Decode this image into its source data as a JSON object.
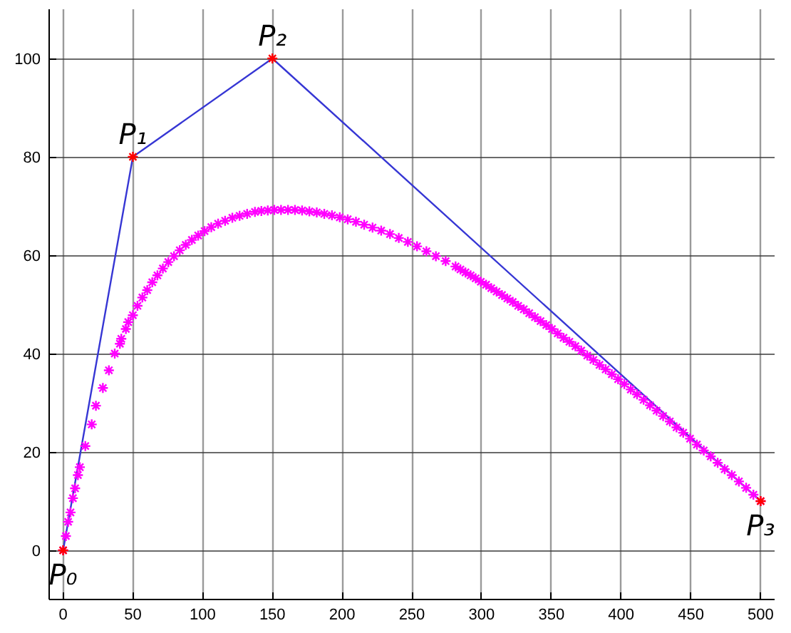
{
  "chart_data": {
    "type": "scatter",
    "marker": "cross",
    "grid": true,
    "xlim": [
      -10,
      510
    ],
    "ylim": [
      -10,
      110
    ],
    "xticks": [
      0,
      50,
      100,
      150,
      200,
      250,
      300,
      350,
      400,
      450,
      500
    ],
    "yticks": [
      0,
      20,
      40,
      60,
      80,
      100
    ],
    "series": [
      {
        "type": "line",
        "marker": "none",
        "color": "#3636d4",
        "x": [
          0,
          50,
          150,
          500
        ],
        "values": [
          0,
          80,
          100,
          10
        ]
      },
      {
        "color": "#ff00ff",
        "x": [
          0,
          2,
          3.6,
          5.3,
          7,
          8.6,
          10.6,
          12,
          15.9,
          20.5,
          23.5,
          28.5,
          32.8,
          37,
          40.7,
          41.7,
          45,
          46.7,
          50,
          53.3,
          56.8,
          60.3,
          63.9,
          67.6,
          71.5,
          75.4,
          79.5,
          83.6,
          87.9,
          92.3,
          96.8,
          101.4,
          106.2,
          111.1,
          116.1,
          121.3,
          126.5,
          131.9,
          137.5,
          142.1,
          146.7,
          151.4,
          156.2,
          161.2,
          166.2,
          171.3,
          176.5,
          181.8,
          187.2,
          192.7,
          198.3,
          204,
          209.9,
          215.8,
          221.8,
          228,
          234.3,
          240.6,
          247.1,
          253.7,
          260.4,
          267.2,
          274.2,
          281.3,
          284.8,
          288.4,
          292.1,
          295.7,
          299.4,
          303.2,
          306.9,
          310.7,
          314.6,
          318.4,
          322.3,
          326.2,
          330.2,
          334.1,
          338.2,
          342.2,
          346.3,
          350.4,
          354.5,
          358.7,
          362.9,
          367.2,
          371.4,
          375.7,
          380.1,
          384.5,
          388.9,
          393.3,
          397.8,
          402.3,
          406.9,
          411.4,
          416.1,
          420.7,
          425.4,
          430.1,
          434.9,
          439.7,
          444.5,
          449.4,
          454.3,
          459.2,
          464.2,
          469.2,
          474.2,
          479.3,
          484.4,
          489.6,
          494.8,
          500
        ],
        "values": [
          0,
          2.9,
          5.8,
          7.7,
          10.6,
          12.6,
          15.3,
          16.9,
          21.2,
          25.6,
          29.4,
          33,
          36.6,
          40,
          42,
          43,
          45,
          46.4,
          47.8,
          49.7,
          51.4,
          52.9,
          54.5,
          55.9,
          57.3,
          58.6,
          59.8,
          61,
          62.1,
          63.1,
          64,
          64.9,
          65.7,
          66.4,
          67,
          67.6,
          68,
          68.4,
          68.8,
          69,
          69.1,
          69.2,
          69.2,
          69.2,
          69.2,
          69.1,
          68.9,
          68.7,
          68.4,
          68.1,
          67.7,
          67.3,
          66.8,
          66.2,
          65.6,
          65,
          64.3,
          63.5,
          62.7,
          61.8,
          60.8,
          59.8,
          58.8,
          57.7,
          57.1,
          56.5,
          55.9,
          55.3,
          54.6,
          54,
          53.3,
          52.6,
          51.9,
          51.2,
          50.5,
          49.7,
          49,
          48.2,
          47.4,
          46.6,
          45.8,
          45,
          44.1,
          43.2,
          42.4,
          41.5,
          40.6,
          39.6,
          38.7,
          37.7,
          36.8,
          35.8,
          34.8,
          33.8,
          32.7,
          31.7,
          30.6,
          29.5,
          28.4,
          27.3,
          26.2,
          25,
          23.9,
          22.7,
          21.5,
          20.3,
          19.1,
          17.8,
          16.5,
          15.3,
          14,
          12.7,
          11.3,
          10
        ]
      },
      {
        "color": "#ff0000",
        "x": [
          0,
          50,
          150,
          500
        ],
        "values": [
          0,
          80,
          100,
          10
        ]
      }
    ],
    "annotations": [
      {
        "text": "P₀",
        "x": 0,
        "y": 0
      },
      {
        "text": "P₁",
        "x": 50,
        "y": 80
      },
      {
        "text": "P₂",
        "x": 150,
        "y": 100
      },
      {
        "text": "P₃",
        "x": 500,
        "y": 10
      }
    ]
  }
}
